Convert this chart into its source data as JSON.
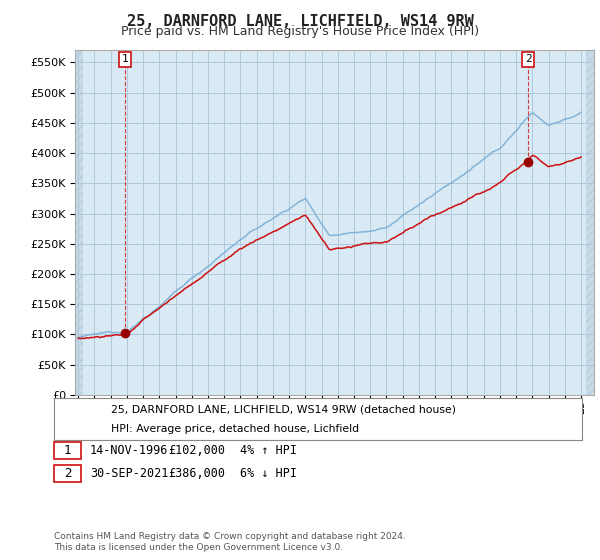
{
  "title": "25, DARNFORD LANE, LICHFIELD, WS14 9RW",
  "subtitle": "Price paid vs. HM Land Registry's House Price Index (HPI)",
  "ylim": [
    0,
    570000
  ],
  "yticks": [
    0,
    50000,
    100000,
    150000,
    200000,
    250000,
    300000,
    350000,
    400000,
    450000,
    500000,
    550000
  ],
  "hpi_color": "#7aaed4",
  "price_color": "#cc1111",
  "marker_color": "#990000",
  "chart_bg": "#daeaf5",
  "hatch_color": "#c8dae8",
  "sale1_year": 1996.87,
  "sale1_price": 102000,
  "sale2_year": 2021.75,
  "sale2_price": 386000,
  "legend_line1": "25, DARNFORD LANE, LICHFIELD, WS14 9RW (detached house)",
  "legend_line2": "HPI: Average price, detached house, Lichfield",
  "note1_num": "1",
  "note1_date": "14-NOV-1996",
  "note1_price": "£102,000",
  "note1_hpi": "4% ↑ HPI",
  "note2_num": "2",
  "note2_date": "30-SEP-2021",
  "note2_price": "£386,000",
  "note2_hpi": "6% ↓ HPI",
  "footnote": "Contains HM Land Registry data © Crown copyright and database right 2024.\nThis data is licensed under the Open Government Licence v3.0.",
  "background_color": "#ffffff",
  "grid_color": "#b0c8dc",
  "title_fontsize": 11,
  "subtitle_fontsize": 9,
  "tick_fontsize": 8
}
